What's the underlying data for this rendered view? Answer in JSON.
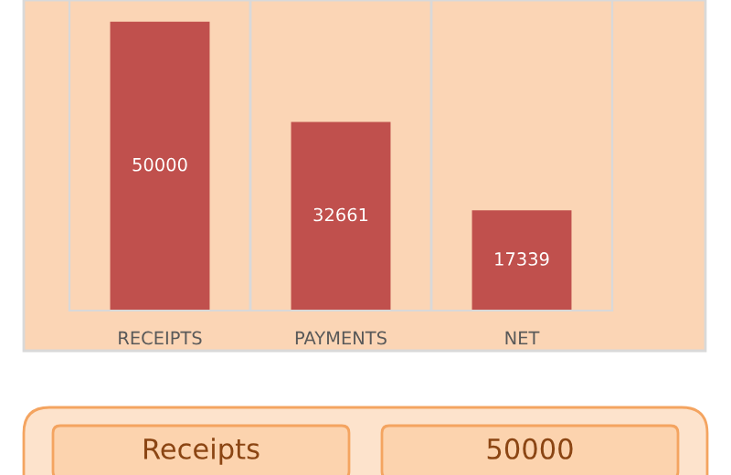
{
  "chart_data": [
    {
      "type": "bar",
      "categories": [
        "RECEIPTS",
        "PAYMENTS",
        "NET"
      ],
      "values": [
        50000,
        32661,
        17339
      ],
      "color": "#c0504d",
      "data_labels": true,
      "grid": "x"
    },
    {
      "type": "other",
      "annotations": [
        "Receipts",
        "50000"
      ]
    }
  ]
}
